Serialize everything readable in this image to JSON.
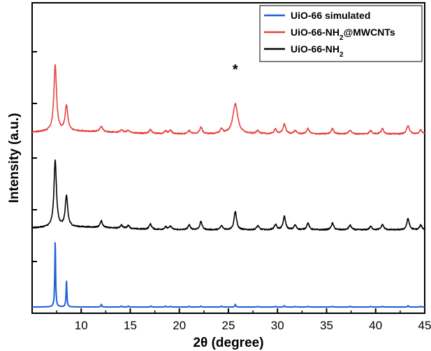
{
  "chart_data": {
    "type": "line",
    "xlabel": "2θ (degree)",
    "ylabel": "Intensity (a.u.)",
    "xlim": [
      5,
      45
    ],
    "x_ticks": [
      10,
      15,
      20,
      25,
      30,
      35,
      40,
      45
    ],
    "y_ticks_labeled": false,
    "grid": false,
    "legend_position": "top-right",
    "annotation": {
      "text": "*",
      "x": 25.7
    },
    "series": [
      {
        "name": "UiO-66 simulated",
        "color": "#1f5fd6",
        "offset": 0,
        "scale": 100,
        "noise": 0.2,
        "peaks": [
          [
            7.35,
            1.0,
            0.05
          ],
          [
            8.5,
            0.4,
            0.05
          ],
          [
            12.05,
            0.04,
            0.05
          ],
          [
            14.1,
            0.015,
            0.05
          ],
          [
            14.8,
            0.015,
            0.05
          ],
          [
            17.1,
            0.015,
            0.05
          ],
          [
            18.6,
            0.015,
            0.05
          ],
          [
            19.1,
            0.01,
            0.05
          ],
          [
            21.0,
            0.01,
            0.05
          ],
          [
            22.2,
            0.015,
            0.05
          ],
          [
            24.3,
            0.015,
            0.05
          ],
          [
            25.7,
            0.04,
            0.05
          ],
          [
            28.0,
            0.01,
            0.05
          ],
          [
            29.8,
            0.01,
            0.05
          ],
          [
            30.7,
            0.02,
            0.05
          ],
          [
            31.8,
            0.01,
            0.05
          ],
          [
            33.1,
            0.01,
            0.05
          ],
          [
            35.6,
            0.01,
            0.05
          ],
          [
            37.4,
            0.01,
            0.05
          ],
          [
            39.5,
            0.01,
            0.05
          ],
          [
            40.7,
            0.01,
            0.05
          ],
          [
            43.3,
            0.02,
            0.05
          ],
          [
            44.6,
            0.01,
            0.05
          ]
        ]
      },
      {
        "name": "UiO-66-NH₂",
        "color": "#000000",
        "offset": 370,
        "scale": 100,
        "noise": 3,
        "peaks": [
          [
            7.35,
            1.0,
            0.15
          ],
          [
            8.5,
            0.46,
            0.15
          ],
          [
            12.05,
            0.1,
            0.15
          ],
          [
            14.1,
            0.05,
            0.15
          ],
          [
            14.8,
            0.05,
            0.15
          ],
          [
            17.05,
            0.08,
            0.15
          ],
          [
            18.6,
            0.04,
            0.15
          ],
          [
            19.1,
            0.05,
            0.15
          ],
          [
            21.0,
            0.07,
            0.15
          ],
          [
            22.2,
            0.12,
            0.15
          ],
          [
            24.3,
            0.06,
            0.15
          ],
          [
            25.7,
            0.28,
            0.15
          ],
          [
            28.0,
            0.06,
            0.15
          ],
          [
            29.8,
            0.08,
            0.15
          ],
          [
            30.7,
            0.2,
            0.15
          ],
          [
            31.8,
            0.07,
            0.15
          ],
          [
            33.1,
            0.1,
            0.15
          ],
          [
            35.6,
            0.1,
            0.15
          ],
          [
            37.4,
            0.07,
            0.15
          ],
          [
            39.5,
            0.05,
            0.15
          ],
          [
            40.7,
            0.08,
            0.15
          ],
          [
            43.3,
            0.17,
            0.15
          ],
          [
            44.6,
            0.07,
            0.15
          ]
        ]
      },
      {
        "name": "UiO-66-NH₂@MWCNTs",
        "color": "#e8413c",
        "offset": 830,
        "scale": 100,
        "noise": 3,
        "peaks": [
          [
            7.35,
            1.0,
            0.16
          ],
          [
            8.5,
            0.38,
            0.16
          ],
          [
            12.05,
            0.08,
            0.16
          ],
          [
            14.1,
            0.04,
            0.16
          ],
          [
            14.8,
            0.04,
            0.16
          ],
          [
            17.05,
            0.06,
            0.16
          ],
          [
            18.6,
            0.04,
            0.16
          ],
          [
            19.1,
            0.05,
            0.16
          ],
          [
            21.0,
            0.05,
            0.16
          ],
          [
            22.2,
            0.1,
            0.16
          ],
          [
            24.3,
            0.07,
            0.16
          ],
          [
            25.7,
            0.45,
            0.3
          ],
          [
            28.0,
            0.05,
            0.16
          ],
          [
            29.8,
            0.07,
            0.16
          ],
          [
            30.7,
            0.15,
            0.16
          ],
          [
            31.8,
            0.05,
            0.16
          ],
          [
            33.1,
            0.08,
            0.16
          ],
          [
            35.6,
            0.08,
            0.16
          ],
          [
            37.4,
            0.06,
            0.16
          ],
          [
            39.5,
            0.05,
            0.16
          ],
          [
            40.7,
            0.08,
            0.16
          ],
          [
            43.3,
            0.13,
            0.16
          ],
          [
            44.6,
            0.06,
            0.16
          ]
        ]
      }
    ],
    "legend": [
      {
        "label": "UiO-66 simulated",
        "color": "#1f5fd6",
        "sub": ""
      },
      {
        "label": "UiO-66-NH",
        "color": "#e8413c",
        "sub": "2",
        "suffix": "@MWCNTs"
      },
      {
        "label": "UiO-66-NH",
        "color": "#000000",
        "sub": "2",
        "suffix": ""
      }
    ]
  }
}
